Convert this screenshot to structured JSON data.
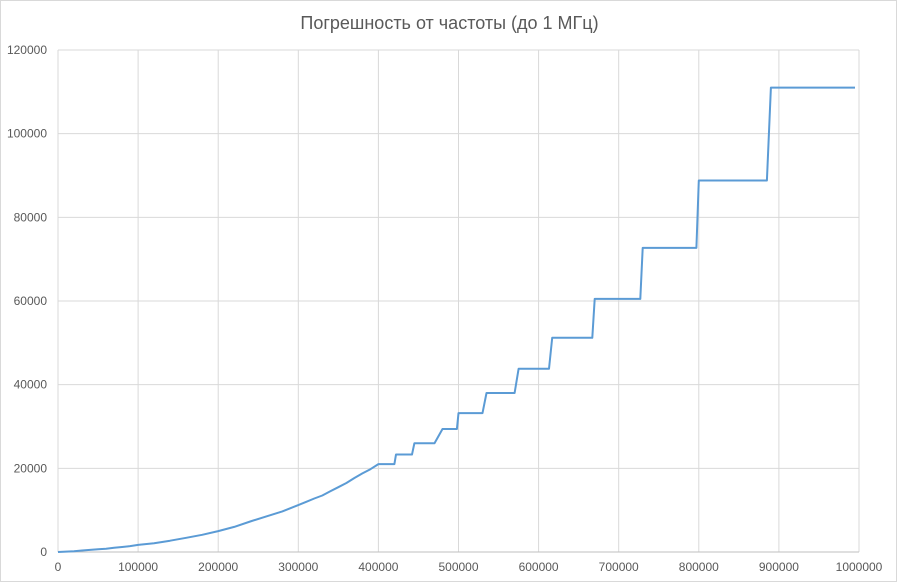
{
  "chart_data": {
    "type": "line",
    "title": "Погрешность от частоты (до 1 МГц)",
    "xlabel": "",
    "ylabel": "",
    "xlim": [
      0,
      1000000
    ],
    "ylim": [
      0,
      120000
    ],
    "x_ticks": [
      0,
      100000,
      200000,
      300000,
      400000,
      500000,
      600000,
      700000,
      800000,
      900000,
      1000000
    ],
    "y_ticks": [
      0,
      20000,
      40000,
      60000,
      80000,
      100000,
      120000
    ],
    "x_tick_labels": [
      "0",
      "100000",
      "200000",
      "300000",
      "400000",
      "500000",
      "600000",
      "700000",
      "800000",
      "900000",
      "1000000"
    ],
    "y_tick_labels": [
      "0",
      "20000",
      "40000",
      "60000",
      "80000",
      "100000",
      "120000"
    ],
    "grid": true,
    "legend": "none",
    "series": [
      {
        "color": "#5b9bd5",
        "x": [
          0,
          10000,
          20000,
          30000,
          40000,
          50000,
          60000,
          70000,
          80000,
          90000,
          100000,
          120000,
          140000,
          160000,
          180000,
          200000,
          220000,
          240000,
          260000,
          280000,
          300000,
          310000,
          320000,
          330000,
          340000,
          350000,
          360000,
          370000,
          380000,
          390000,
          400000,
          420000,
          422000,
          432000,
          442000,
          445000,
          465000,
          470000,
          480000,
          485000,
          498000,
          500000,
          530000,
          535000,
          570000,
          575000,
          613000,
          617000,
          667000,
          670000,
          727000,
          730000,
          797000,
          800000,
          885000,
          890000,
          995000
        ],
        "y": [
          0,
          100,
          200,
          350,
          500,
          650,
          800,
          1000,
          1200,
          1400,
          1700,
          2100,
          2700,
          3400,
          4100,
          5000,
          6000,
          7300,
          8500,
          9700,
          11200,
          12000,
          12800,
          13500,
          14500,
          15500,
          16500,
          17700,
          18800,
          19800,
          21000,
          21000,
          23300,
          23300,
          23300,
          26000,
          26000,
          26000,
          29400,
          29400,
          29400,
          33200,
          33200,
          38000,
          38000,
          43800,
          43800,
          51200,
          51200,
          60500,
          60500,
          72700,
          72700,
          88800,
          88800,
          111000,
          111000
        ]
      }
    ]
  }
}
